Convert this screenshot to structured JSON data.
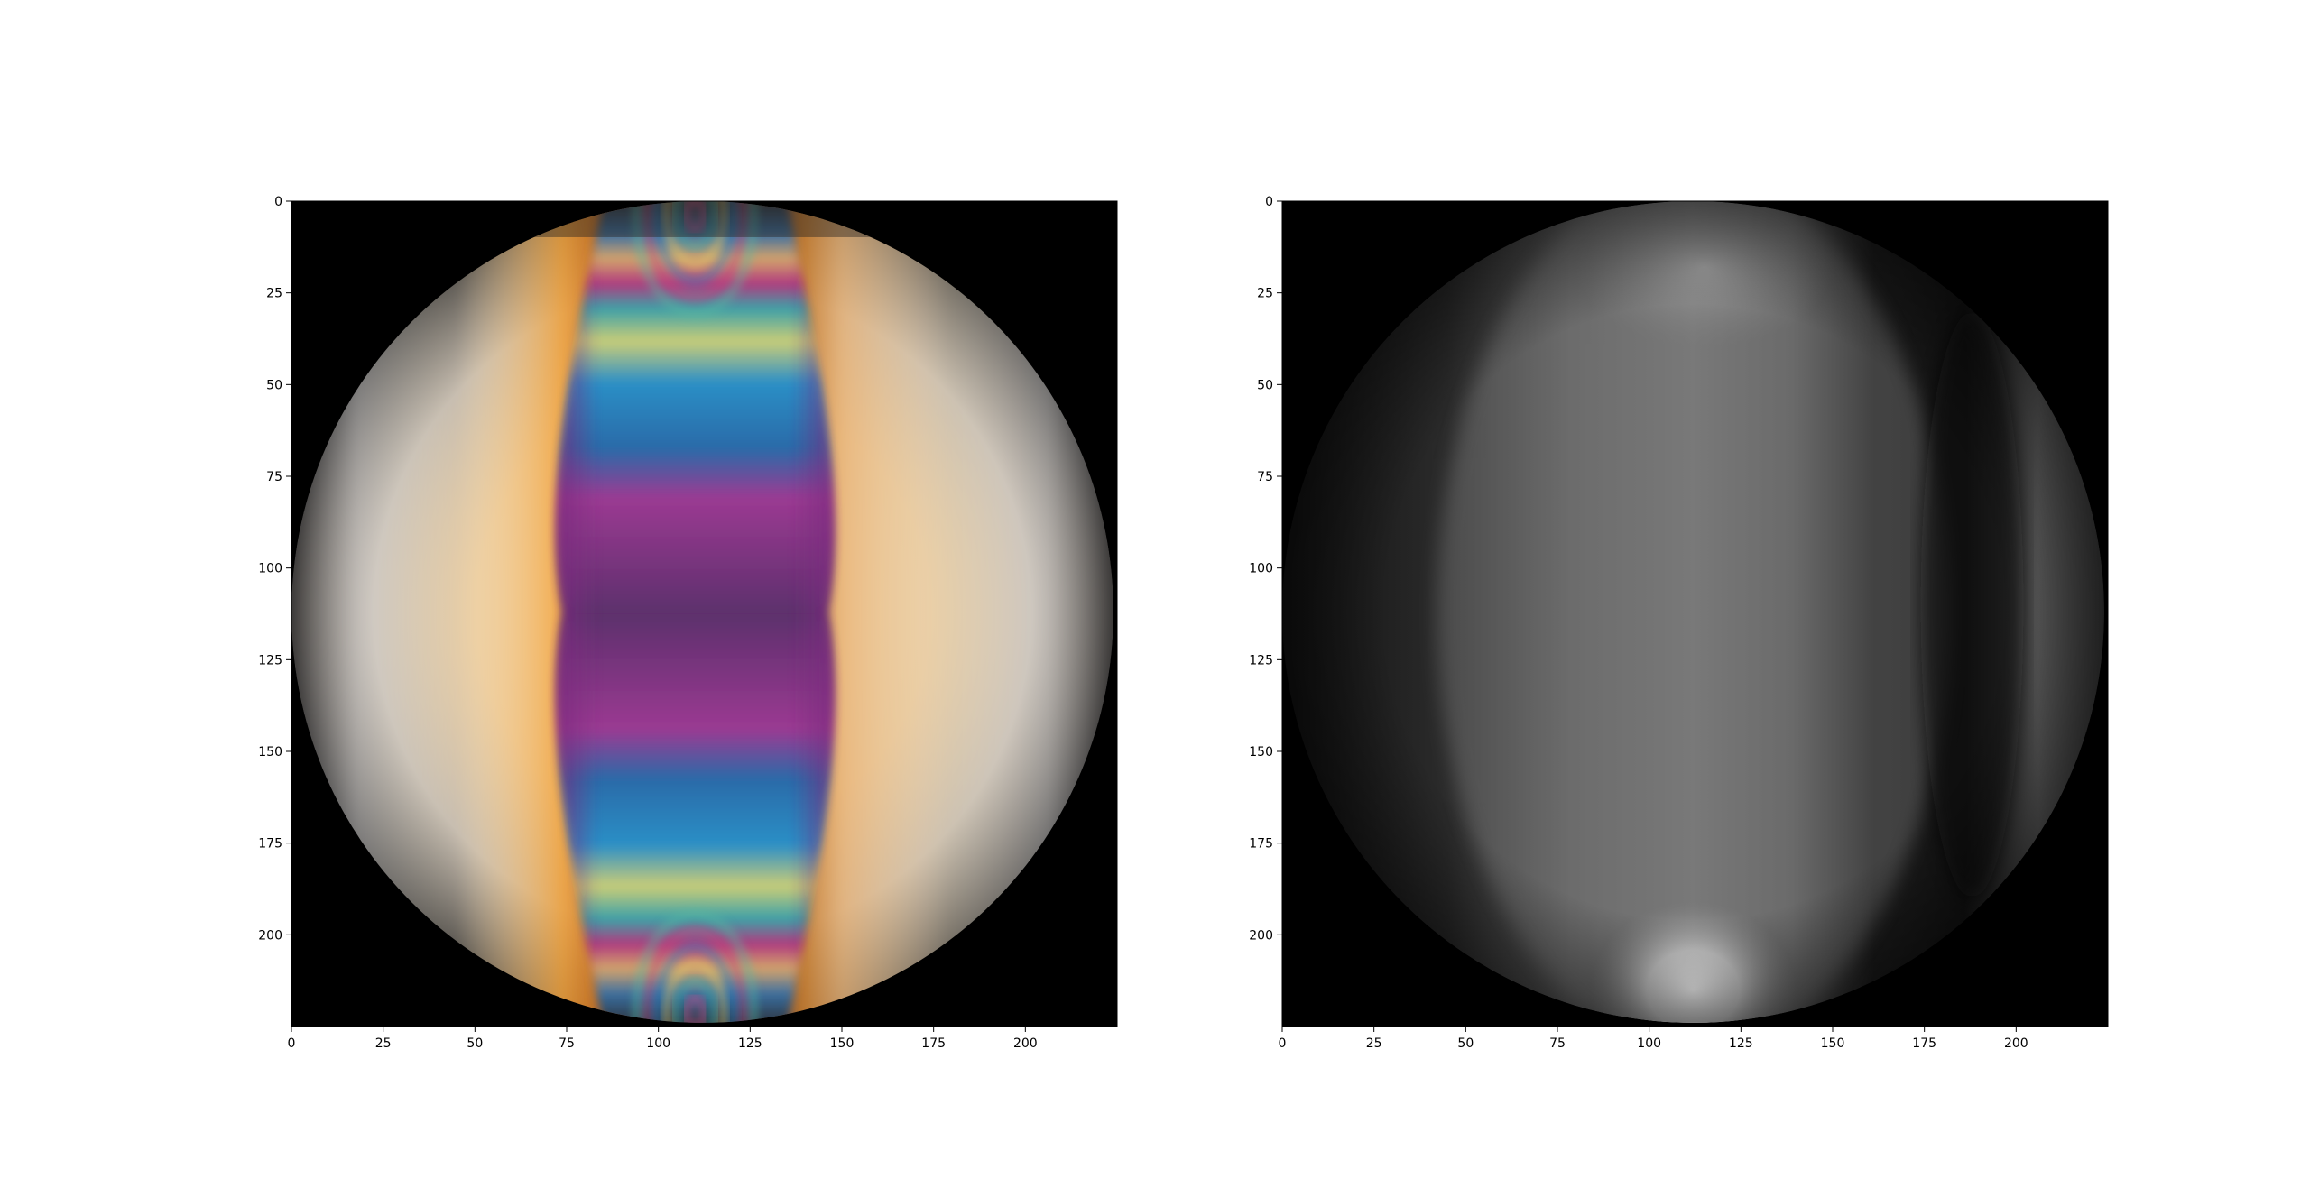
{
  "figure": {
    "panels": 2
  },
  "chart_data": [
    {
      "type": "heatmap",
      "title": "",
      "xlabel": "",
      "ylabel": "",
      "image_size": [
        225,
        225
      ],
      "xlim": [
        0,
        225
      ],
      "ylim": [
        225,
        0
      ],
      "xticks": [
        0,
        25,
        50,
        75,
        100,
        125,
        150,
        175,
        200
      ],
      "yticks": [
        0,
        25,
        50,
        75,
        100,
        125,
        150,
        175,
        200
      ],
      "grid": false,
      "colormap": "photoelastic isochromatic fringe colors (RGB photograph)",
      "content": {
        "disk_center": [
          112,
          112
        ],
        "disk_radius": 112,
        "background": "#000000",
        "fringe_center_x": 110,
        "fringe_half_width_top_bottom": 25,
        "fringe_half_width_waist": 36,
        "colors": [
          "#000000",
          "#1f2a3a",
          "#1d6fa8",
          "#2aa6c6",
          "#cfd08a",
          "#e9b85a",
          "#c13d86",
          "#6a3a8c",
          "#5a2f6e",
          "#f0c98a",
          "#ffffff"
        ]
      }
    },
    {
      "type": "heatmap",
      "title": "",
      "xlabel": "",
      "ylabel": "",
      "image_size": [
        225,
        225
      ],
      "xlim": [
        0,
        225
      ],
      "ylim": [
        225,
        0
      ],
      "xticks": [
        0,
        25,
        50,
        75,
        100,
        125,
        150,
        175,
        200
      ],
      "yticks": [
        0,
        25,
        50,
        75,
        100,
        125,
        150,
        175,
        200
      ],
      "grid": false,
      "colormap": "gray",
      "content": {
        "disk_center": [
          112,
          112
        ],
        "disk_radius": 112,
        "background": "#000000",
        "bright_spot_center": [
          112,
          215
        ],
        "colors": [
          "#000000",
          "#1c1c1c",
          "#3a3a3a",
          "#6a6a6a",
          "#8a8a8a",
          "#f2f2f2"
        ]
      }
    }
  ]
}
